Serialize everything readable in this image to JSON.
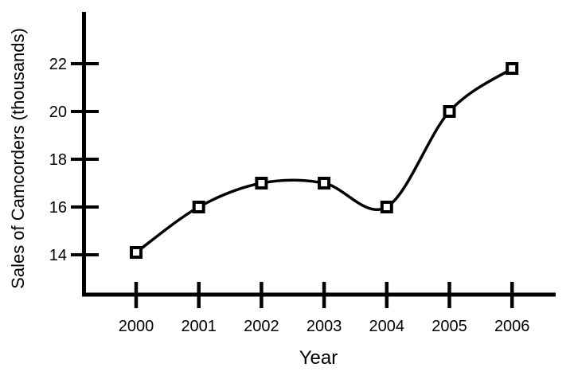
{
  "page": {
    "background_color": "#ffffff",
    "foreground_color": "#000000"
  },
  "chart_data": {
    "type": "line",
    "title": "",
    "xlabel": "Year",
    "ylabel": "Sales of Camcorders (thousands)",
    "x": [
      2000,
      2001,
      2002,
      2003,
      2004,
      2005,
      2006
    ],
    "x_tick_labels": [
      "2000",
      "2001",
      "2002",
      "2003",
      "2004",
      "2005",
      "2006"
    ],
    "series": [
      {
        "name": "Sales of Camcorders",
        "values": [
          14.1,
          16,
          17,
          17,
          16,
          20,
          21.8
        ]
      }
    ],
    "y_ticks": [
      14,
      16,
      18,
      20,
      22
    ],
    "y_tick_labels": [
      "14",
      "16",
      "18",
      "20",
      "22"
    ],
    "ylim": [
      12.3,
      26.3
    ],
    "grid": false,
    "legend_position": "none",
    "line_style": "smooth-spline",
    "line_color": "#000000",
    "marker": "open-square",
    "marker_fill": "#ffffff",
    "marker_stroke": "#000000"
  }
}
